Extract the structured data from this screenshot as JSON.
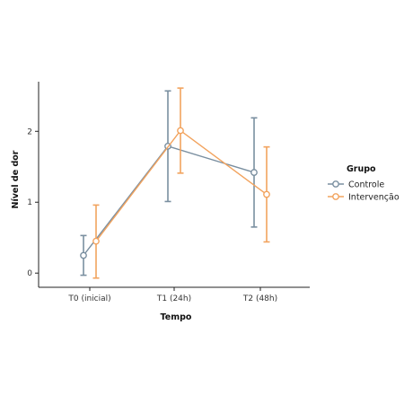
{
  "chart_data": {
    "type": "line",
    "xlabel": "Tempo",
    "ylabel": "Nível de dor",
    "categories": [
      "T0 (inicial)",
      "T1 (24h)",
      "T2 (48h)"
    ],
    "ylim": [
      -0.2,
      2.7
    ],
    "yticks": [
      0,
      1,
      2
    ],
    "legend": {
      "title": "Grupo",
      "position": "right"
    },
    "grid": false,
    "series": [
      {
        "name": "Controle",
        "color": "#7a8fa0",
        "values": [
          0.25,
          1.79,
          1.42
        ],
        "err_low": [
          -0.03,
          1.01,
          0.65
        ],
        "err_high": [
          0.53,
          2.57,
          2.19
        ]
      },
      {
        "name": "Intervenção",
        "color": "#f2a35e",
        "values": [
          0.45,
          2.01,
          1.11
        ],
        "err_low": [
          -0.07,
          1.41,
          0.44
        ],
        "err_high": [
          0.96,
          2.61,
          1.78
        ]
      }
    ]
  }
}
